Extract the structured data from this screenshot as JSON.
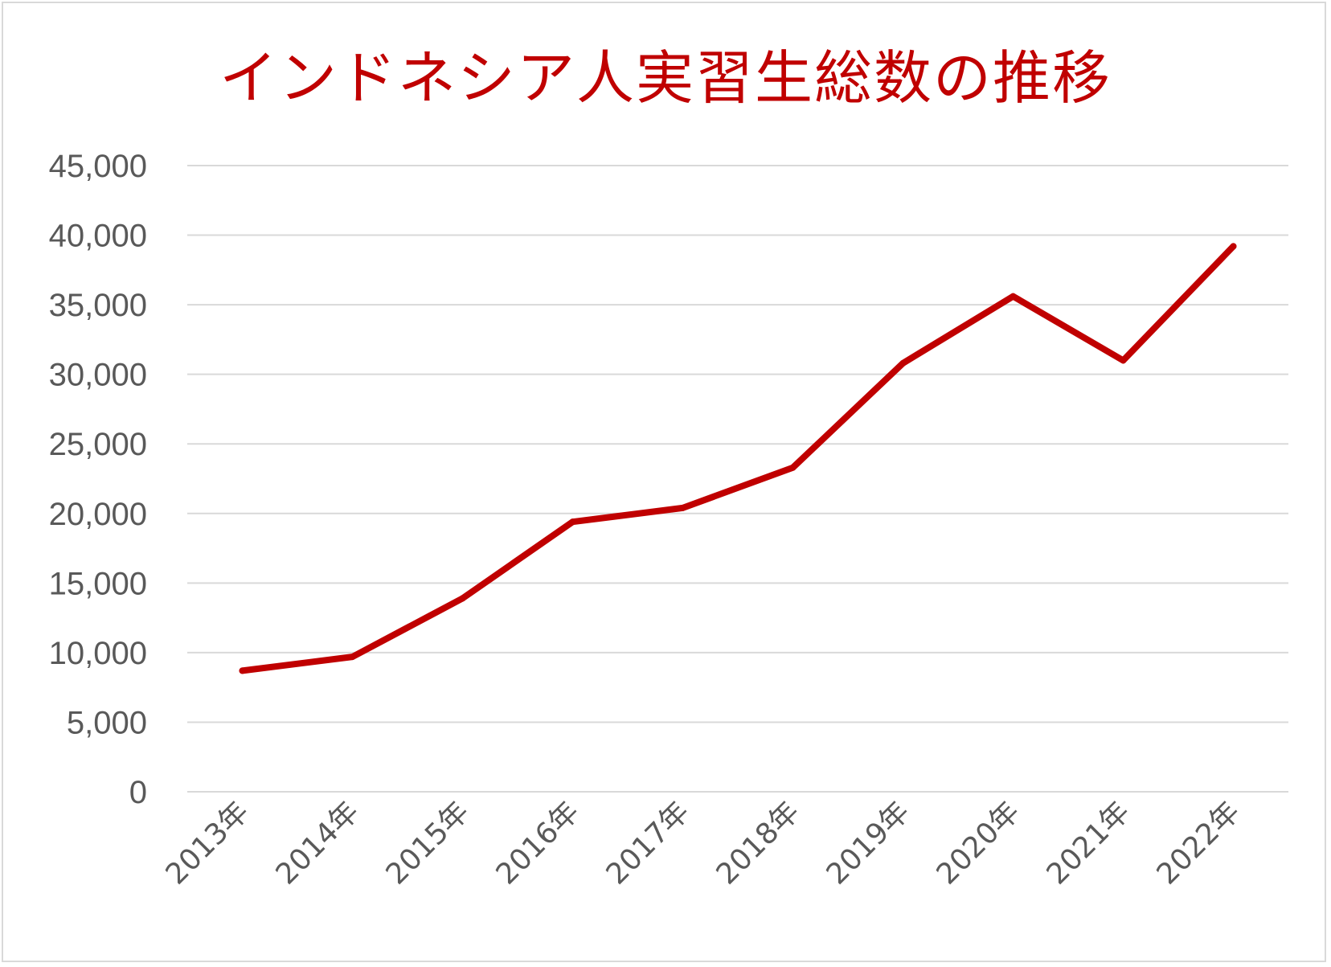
{
  "chart_data": {
    "type": "line",
    "title": "インドネシア人実習生総数の推移",
    "categories": [
      "2013年",
      "2014年",
      "2015年",
      "2016年",
      "2017年",
      "2018年",
      "2019年",
      "2020年",
      "2021年",
      "2022年"
    ],
    "series": [
      {
        "values": [
          8700,
          9700,
          13900,
          19400,
          20400,
          23300,
          30800,
          35600,
          31000,
          39200
        ]
      }
    ],
    "ylim": [
      0,
      45000
    ],
    "y_ticks": [
      "0",
      "5,000",
      "10,000",
      "15,000",
      "20,000",
      "25,000",
      "30,000",
      "35,000",
      "40,000",
      "45,000"
    ],
    "y_tick_values": [
      0,
      5000,
      10000,
      15000,
      20000,
      25000,
      30000,
      35000,
      40000,
      45000
    ],
    "grid": true,
    "legend": "none",
    "colors": {
      "line": "#c00000",
      "title": "#c00000",
      "grid": "#d9d9d9",
      "text": "#595959"
    }
  }
}
